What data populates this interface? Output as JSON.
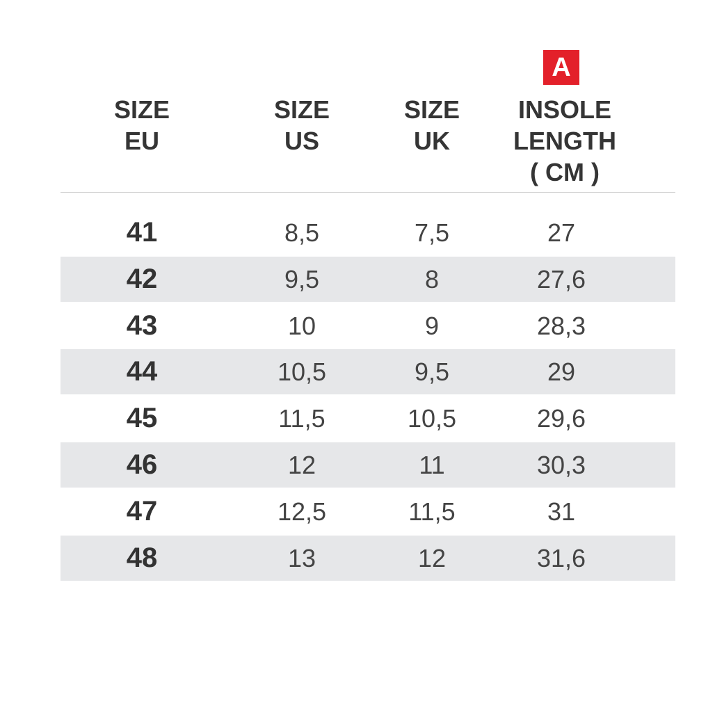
{
  "badge": "A",
  "table": {
    "header": [
      [
        "SIZE",
        "EU"
      ],
      [
        "SIZE",
        "US"
      ],
      [
        "SIZE",
        "UK"
      ],
      [
        "INSOLE",
        "LENGTH",
        "( CM )"
      ]
    ],
    "rows": [
      [
        "41",
        "8,5",
        "7,5",
        "27"
      ],
      [
        "42",
        "9,5",
        "8",
        "27,6"
      ],
      [
        "43",
        "10",
        "9",
        "28,3"
      ],
      [
        "44",
        "10,5",
        "9,5",
        "29"
      ],
      [
        "45",
        "11,5",
        "10,5",
        "29,6"
      ],
      [
        "46",
        "12",
        "11",
        "30,3"
      ],
      [
        "47",
        "12,5",
        "11,5",
        "31"
      ],
      [
        "48",
        "13",
        "12",
        "31,6"
      ]
    ]
  }
}
